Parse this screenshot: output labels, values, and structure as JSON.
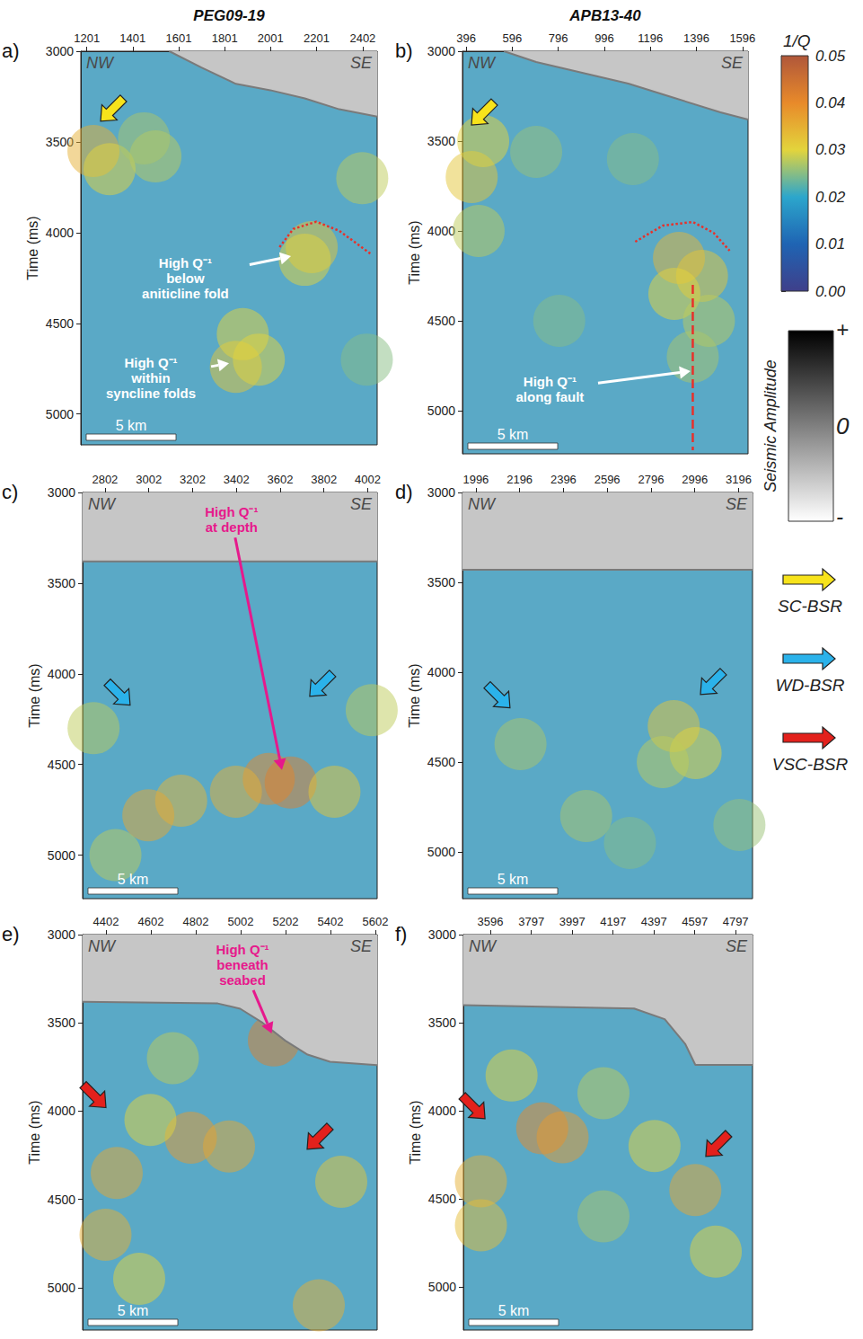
{
  "chart_data": [
    {
      "type": "scatter",
      "panel": "a)",
      "title": "PEG09-19",
      "ylabel": "Time (ms)",
      "grid": false,
      "xlim": [
        1175,
        2465
      ],
      "xticks": [
        1201,
        1401,
        1601,
        1801,
        2001,
        2201,
        2402
      ],
      "ylim": [
        3000,
        5170
      ],
      "yticks": [
        3000,
        3500,
        4000,
        4500,
        5000
      ],
      "corner_labels": [
        "NW",
        "SE"
      ],
      "scale_bar": "5 km",
      "seabed": {
        "x": [
          1560,
          1700,
          1850,
          2000,
          2150,
          2300,
          2465
        ],
        "t": [
          3000,
          3090,
          3180,
          3215,
          3260,
          3320,
          3360
        ]
      },
      "q_anomalies": {
        "x": [
          1230,
          1300,
          1500,
          1450,
          2180,
          2150,
          1850,
          1950,
          1880,
          2400,
          2420
        ],
        "t": [
          3550,
          3650,
          3580,
          3480,
          4080,
          4150,
          4740,
          4700,
          4560,
          3700,
          4700
        ],
        "q": [
          0.035,
          0.03,
          0.028,
          0.027,
          0.032,
          0.03,
          0.032,
          0.03,
          0.03,
          0.028,
          0.025
        ]
      },
      "bsr_arrows": [
        {
          "kind": "SC-BSR",
          "x": 1261,
          "t": 3386,
          "direction": "down-left"
        }
      ],
      "annotations": [
        {
          "lines": [
            "High Q⁻¹",
            "below",
            "aniticline fold"
          ],
          "color": "#ffffff",
          "x": 1630,
          "t": 4250,
          "tip_x": 2090,
          "tip_t": 4130
        },
        {
          "lines": [
            "High Q⁻¹",
            "within",
            "syncline folds"
          ],
          "color": "#ffffff",
          "x": 1480,
          "t": 4800,
          "tip_x": 1820,
          "tip_t": 4720
        }
      ],
      "dashed_lines": [
        {
          "x": [
            2040,
            2100,
            2200,
            2300,
            2440
          ],
          "t": [
            4080,
            3980,
            3940,
            3990,
            4120
          ],
          "color": "#e8302a",
          "line_style": "dotted"
        }
      ]
    },
    {
      "type": "scatter",
      "panel": "b)",
      "title": "APB13-40",
      "ylabel": "Time (ms)",
      "grid": false,
      "xlim": [
        380,
        1620
      ],
      "xticks": [
        396,
        596,
        796,
        996,
        1196,
        1396,
        1596
      ],
      "ylim": [
        3000,
        5240
      ],
      "yticks": [
        3000,
        3500,
        4000,
        4500,
        5000
      ],
      "corner_labels": [
        "NW",
        "SE"
      ],
      "scale_bar": "5 km",
      "seabed": {
        "x": [
          560,
          700,
          900,
          1100,
          1300,
          1500,
          1620
        ],
        "t": [
          3000,
          3060,
          3120,
          3180,
          3260,
          3340,
          3380
        ]
      },
      "q_anomalies": {
        "x": [
          420,
          470,
          450,
          700,
          800,
          1320,
          1420,
          1300,
          1450,
          1380,
          1120
        ],
        "t": [
          3700,
          3500,
          4000,
          3560,
          4500,
          4150,
          4250,
          4350,
          4500,
          4700,
          3600
        ],
        "q": [
          0.032,
          0.03,
          0.028,
          0.026,
          0.025,
          0.034,
          0.032,
          0.03,
          0.028,
          0.027,
          0.025
        ]
      },
      "bsr_arrows": [
        {
          "kind": "SC-BSR",
          "x": 419,
          "t": 3410,
          "direction": "down-left"
        }
      ],
      "annotations": [
        {
          "lines": [
            "High Q⁻¹",
            "along fault"
          ],
          "color": "#ffffff",
          "x": 760,
          "t": 4880,
          "tip_x": 1370,
          "tip_t": 4780
        }
      ],
      "dashed_lines": [
        {
          "x": [
            1130,
            1250,
            1380,
            1470,
            1540
          ],
          "t": [
            4060,
            3970,
            3950,
            4010,
            4110
          ],
          "color": "#e8302a",
          "line_style": "dotted"
        },
        {
          "x": [
            1380,
            1380
          ],
          "t": [
            4300,
            5220
          ],
          "color": "#e8302a",
          "line_style": "dashed"
        }
      ]
    },
    {
      "type": "scatter",
      "panel": "c)",
      "ylabel": "Time (ms)",
      "grid": false,
      "xlim": [
        2700,
        4045
      ],
      "xticks": [
        2802,
        3002,
        3202,
        3402,
        3602,
        3802,
        4002
      ],
      "ylim": [
        3000,
        5240
      ],
      "yticks": [
        3000,
        3500,
        4000,
        4500,
        5000
      ],
      "corner_labels": [
        "NW",
        "SE"
      ],
      "scale_bar": "5 km",
      "seabed": {
        "x": [
          2700,
          4045
        ],
        "t": [
          3380,
          3380
        ]
      },
      "q_anomalies": {
        "x": [
          3550,
          3650,
          3400,
          3150,
          3000,
          2750,
          3850,
          4020,
          2850
        ],
        "t": [
          4580,
          4600,
          4650,
          4700,
          4780,
          4300,
          4650,
          4200,
          5000
        ],
        "q": [
          0.04,
          0.042,
          0.035,
          0.034,
          0.036,
          0.028,
          0.032,
          0.028,
          0.028
        ]
      },
      "bsr_arrows": [
        {
          "kind": "WD-BSR",
          "x": 2917,
          "t": 4173,
          "direction": "down-right"
        },
        {
          "kind": "WD-BSR",
          "x": 3737,
          "t": 4124,
          "direction": "down-left"
        }
      ],
      "annotations": [
        {
          "lines": [
            "High Q⁻¹",
            "at depth"
          ],
          "color": "#e6198c",
          "x": 3380,
          "t": 3150,
          "tip_x": 3610,
          "tip_t": 4530
        }
      ],
      "dashed_lines": []
    },
    {
      "type": "scatter",
      "panel": "d)",
      "ylabel": "Time (ms)",
      "grid": false,
      "xlim": [
        1935,
        3260
      ],
      "xticks": [
        1996,
        2196,
        2396,
        2596,
        2796,
        2996,
        3196
      ],
      "ylim": [
        3000,
        5260
      ],
      "yticks": [
        3000,
        3500,
        4000,
        4500,
        5000
      ],
      "corner_labels": [
        "NW",
        "SE"
      ],
      "scale_bar": "5 km",
      "seabed": {
        "x": [
          1935,
          3260
        ],
        "t": [
          3430,
          3430
        ]
      },
      "q_anomalies": {
        "x": [
          2900,
          3000,
          2850,
          2200,
          2500,
          3200,
          2700
        ],
        "t": [
          4300,
          4450,
          4500,
          4400,
          4800,
          4850,
          4950
        ],
        "q": [
          0.032,
          0.03,
          0.028,
          0.027,
          0.027,
          0.026,
          0.025
        ]
      },
      "bsr_arrows": [
        {
          "kind": "WD-BSR",
          "x": 2152,
          "t": 4198,
          "direction": "down-right"
        },
        {
          "kind": "WD-BSR",
          "x": 3022,
          "t": 4124,
          "direction": "down-left"
        }
      ],
      "annotations": [],
      "dashed_lines": []
    },
    {
      "type": "scatter",
      "panel": "e)",
      "ylabel": "Time (ms)",
      "grid": false,
      "xlim": [
        4298,
        5610
      ],
      "xticks": [
        4402,
        4602,
        4802,
        5002,
        5202,
        5402,
        5602
      ],
      "ylim": [
        3000,
        5240
      ],
      "yticks": [
        3000,
        3500,
        4000,
        4500,
        5000
      ],
      "corner_labels": [
        "NW",
        "SE"
      ],
      "scale_bar": "5 km",
      "seabed": {
        "x": [
          4298,
          4900,
          5000,
          5100,
          5200,
          5300,
          5400,
          5610
        ],
        "t": [
          3380,
          3390,
          3420,
          3500,
          3600,
          3680,
          3720,
          3740
        ]
      },
      "q_anomalies": {
        "x": [
          5150,
          4450,
          4400,
          4780,
          4950,
          4600,
          5450,
          5350,
          4700,
          4550
        ],
        "t": [
          3600,
          4350,
          4700,
          4150,
          4200,
          4050,
          4400,
          5100,
          3700,
          4950
        ],
        "q": [
          0.042,
          0.036,
          0.035,
          0.038,
          0.036,
          0.03,
          0.032,
          0.035,
          0.028,
          0.03
        ]
      },
      "bsr_arrows": [
        {
          "kind": "VSC-BSR",
          "x": 4402,
          "t": 3980,
          "direction": "down-right"
        },
        {
          "kind": "VSC-BSR",
          "x": 5298,
          "t": 4216,
          "direction": "down-left"
        }
      ],
      "annotations": [
        {
          "lines": [
            "High Q⁻¹",
            "beneath",
            "seabed"
          ],
          "color": "#e6198c",
          "x": 5010,
          "t": 3170,
          "tip_x": 5140,
          "tip_t": 3560
        }
      ],
      "dashed_lines": []
    },
    {
      "type": "scatter",
      "panel": "f)",
      "ylabel": "Time (ms)",
      "grid": false,
      "xlim": [
        3464,
        4880
      ],
      "xticks": [
        3596,
        3797,
        3997,
        4197,
        4397,
        4597,
        4797
      ],
      "ylim": [
        3000,
        5245
      ],
      "yticks": [
        3000,
        3500,
        4000,
        4500,
        5000
      ],
      "corner_labels": [
        "NW",
        "SE"
      ],
      "scale_bar": "5 km",
      "seabed": {
        "x": [
          3464,
          4300,
          4450,
          4550,
          4600,
          4880
        ],
        "t": [
          3400,
          3420,
          3480,
          3620,
          3740,
          3740
        ]
      },
      "q_anomalies": {
        "x": [
          3850,
          3950,
          3700,
          3550,
          3550,
          4150,
          4600,
          4700,
          4150,
          4400
        ],
        "t": [
          4100,
          4150,
          3800,
          4400,
          4650,
          3900,
          4450,
          4800,
          4600,
          4200
        ],
        "q": [
          0.04,
          0.038,
          0.03,
          0.035,
          0.033,
          0.028,
          0.036,
          0.03,
          0.027,
          0.03
        ]
      },
      "bsr_arrows": [
        {
          "kind": "VSC-BSR",
          "x": 3570,
          "t": 4045,
          "direction": "down-right"
        },
        {
          "kind": "VSC-BSR",
          "x": 4651,
          "t": 4260,
          "direction": "down-left"
        }
      ],
      "annotations": [],
      "dashed_lines": []
    }
  ],
  "colorbars": {
    "q": {
      "title": "1/Q",
      "range": [
        0,
        0.05
      ],
      "ticks": [
        {
          "value": 0,
          "label": "0.00"
        },
        {
          "value": 0.01,
          "label": "0.01"
        },
        {
          "value": 0.02,
          "label": "0.02"
        },
        {
          "value": 0.03,
          "label": "0.03"
        },
        {
          "value": 0.04,
          "label": "0.04"
        },
        {
          "value": 0.05,
          "label": "0.05"
        }
      ],
      "colors": [
        "#3f3f8a",
        "#1f64b3",
        "#2ca6cc",
        "#e3d43c",
        "#e88a2a",
        "#b0573a"
      ]
    },
    "amplitude": {
      "title": "Seismic Amplitude",
      "labels": [
        "+",
        "0",
        "-"
      ],
      "colors": [
        "#000000",
        "#ffffff"
      ]
    }
  },
  "legend_arrows": [
    {
      "label": "SC-BSR",
      "color": "#f7e31b"
    },
    {
      "label": "WD-BSR",
      "color": "#2bb2ea"
    },
    {
      "label": "VSC-BSR",
      "color": "#e3211c"
    }
  ]
}
